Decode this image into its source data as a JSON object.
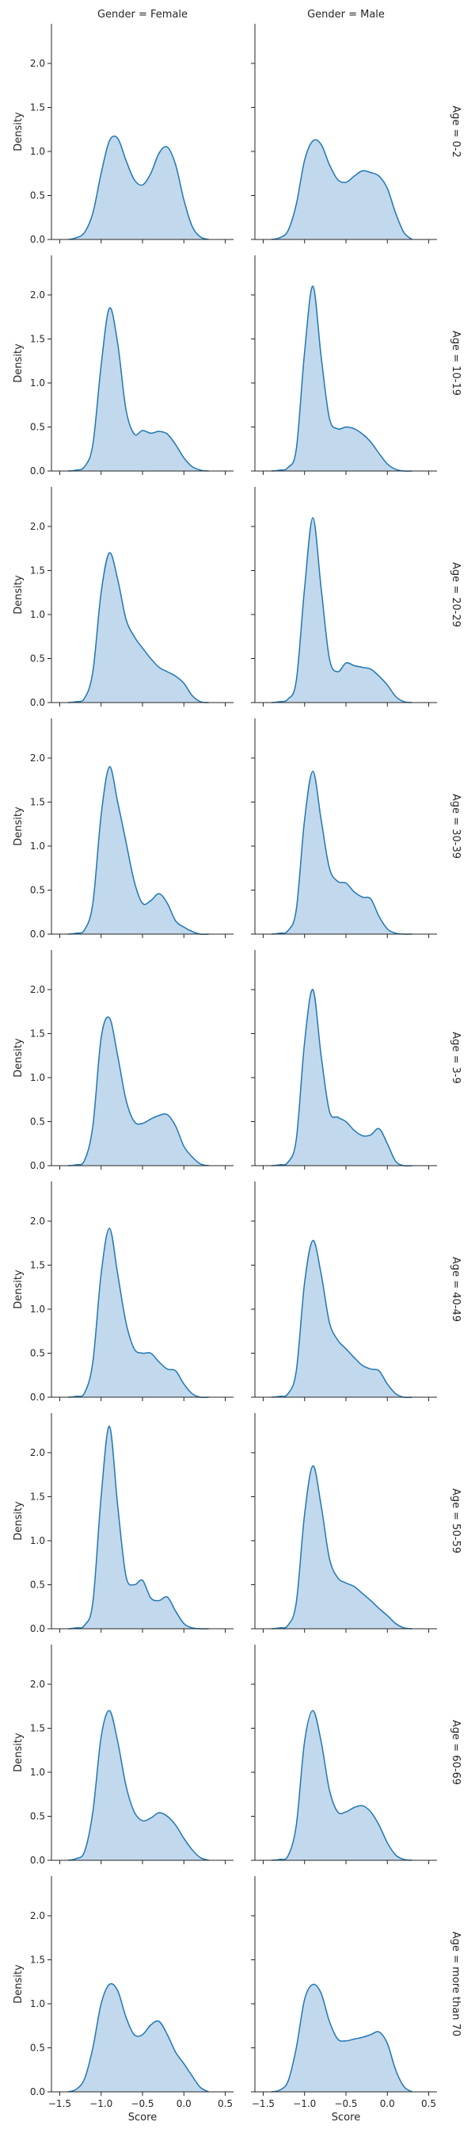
{
  "chart_data": {
    "type": "area",
    "kind": "kde-facet-grid",
    "col_titles": [
      "Gender = Female",
      "Gender = Male"
    ],
    "row_titles": [
      "Age = 0-2",
      "Age = 10-19",
      "Age = 20-29",
      "Age = 30-39",
      "Age = 3-9",
      "Age = 40-49",
      "Age = 50-59",
      "Age = 60-69",
      "Age = more than 70"
    ],
    "xlabel": "Score",
    "ylabel": "Density",
    "xlim": [
      -1.6,
      0.6
    ],
    "ylim": [
      0,
      2.45
    ],
    "x_ticks": [
      -1.5,
      -1.0,
      -0.5,
      0.0,
      0.5
    ],
    "x_tick_labels": [
      "−1.5",
      "−1.0",
      "−0.5",
      "0.0",
      "0.5"
    ],
    "y_ticks": [
      0.0,
      0.5,
      1.0,
      1.5,
      2.0
    ],
    "y_tick_labels": [
      "0.0",
      "0.5",
      "1.0",
      "1.5",
      "2.0"
    ],
    "color": "#1f77b4",
    "fill_color": "#aecbe6",
    "grid": false,
    "x_grid": [
      -1.4,
      -1.3,
      -1.2,
      -1.1,
      -1.0,
      -0.9,
      -0.8,
      -0.7,
      -0.6,
      -0.5,
      -0.4,
      -0.3,
      -0.2,
      -0.1,
      0.0,
      0.1,
      0.2,
      0.3
    ],
    "series": [
      {
        "row": 0,
        "col": 0,
        "x": [
          -1.4,
          -1.3,
          -1.2,
          -1.1,
          -1.0,
          -0.9,
          -0.8,
          -0.7,
          -0.6,
          -0.5,
          -0.4,
          -0.3,
          -0.2,
          -0.1,
          0.0,
          0.1,
          0.2,
          0.3
        ],
        "density": [
          0.0,
          0.02,
          0.08,
          0.3,
          0.75,
          1.12,
          1.15,
          0.9,
          0.68,
          0.62,
          0.75,
          0.98,
          1.05,
          0.85,
          0.45,
          0.15,
          0.03,
          0.0
        ]
      },
      {
        "row": 0,
        "col": 1,
        "x": [
          -1.4,
          -1.3,
          -1.2,
          -1.1,
          -1.0,
          -0.9,
          -0.8,
          -0.7,
          -0.6,
          -0.5,
          -0.4,
          -0.3,
          -0.2,
          -0.1,
          0.0,
          0.1,
          0.2,
          0.3
        ],
        "density": [
          0.0,
          0.02,
          0.1,
          0.4,
          0.9,
          1.12,
          1.08,
          0.85,
          0.68,
          0.65,
          0.72,
          0.78,
          0.76,
          0.72,
          0.58,
          0.3,
          0.08,
          0.0
        ]
      },
      {
        "row": 1,
        "col": 0,
        "x": [
          -1.4,
          -1.3,
          -1.2,
          -1.1,
          -1.0,
          -0.9,
          -0.8,
          -0.7,
          -0.6,
          -0.5,
          -0.4,
          -0.3,
          -0.2,
          -0.1,
          0.0,
          0.1,
          0.2,
          0.3
        ],
        "density": [
          0.0,
          0.01,
          0.05,
          0.3,
          1.2,
          1.85,
          1.45,
          0.7,
          0.42,
          0.46,
          0.43,
          0.45,
          0.42,
          0.3,
          0.15,
          0.05,
          0.01,
          0.0
        ]
      },
      {
        "row": 1,
        "col": 1,
        "x": [
          -1.4,
          -1.3,
          -1.2,
          -1.1,
          -1.0,
          -0.9,
          -0.8,
          -0.7,
          -0.6,
          -0.5,
          -0.4,
          -0.3,
          -0.2,
          -0.1,
          0.0,
          0.1,
          0.2,
          0.3
        ],
        "density": [
          0.0,
          0.01,
          0.04,
          0.25,
          1.35,
          2.1,
          1.3,
          0.6,
          0.48,
          0.5,
          0.48,
          0.42,
          0.33,
          0.2,
          0.08,
          0.02,
          0.0,
          0.0
        ]
      },
      {
        "row": 2,
        "col": 0,
        "x": [
          -1.4,
          -1.3,
          -1.2,
          -1.1,
          -1.0,
          -0.9,
          -0.8,
          -0.7,
          -0.6,
          -0.5,
          -0.4,
          -0.3,
          -0.2,
          -0.1,
          0.0,
          0.1,
          0.2,
          0.3
        ],
        "density": [
          0.0,
          0.01,
          0.05,
          0.35,
          1.25,
          1.7,
          1.4,
          0.95,
          0.75,
          0.62,
          0.5,
          0.4,
          0.35,
          0.3,
          0.22,
          0.08,
          0.01,
          0.0
        ]
      },
      {
        "row": 2,
        "col": 1,
        "x": [
          -1.4,
          -1.3,
          -1.2,
          -1.1,
          -1.0,
          -0.9,
          -0.8,
          -0.7,
          -0.6,
          -0.5,
          -0.4,
          -0.3,
          -0.2,
          -0.1,
          0.0,
          0.1,
          0.2,
          0.3
        ],
        "density": [
          0.0,
          0.01,
          0.04,
          0.25,
          1.3,
          2.1,
          1.3,
          0.5,
          0.35,
          0.45,
          0.42,
          0.4,
          0.38,
          0.3,
          0.2,
          0.07,
          0.01,
          0.0
        ]
      },
      {
        "row": 3,
        "col": 0,
        "x": [
          -1.4,
          -1.3,
          -1.2,
          -1.1,
          -1.0,
          -0.9,
          -0.8,
          -0.7,
          -0.6,
          -0.5,
          -0.4,
          -0.3,
          -0.2,
          -0.1,
          0.0,
          0.1,
          0.2,
          0.3
        ],
        "density": [
          0.0,
          0.01,
          0.05,
          0.35,
          1.35,
          1.9,
          1.5,
          1.05,
          0.6,
          0.35,
          0.38,
          0.46,
          0.35,
          0.15,
          0.08,
          0.03,
          0.0,
          0.0
        ]
      },
      {
        "row": 3,
        "col": 1,
        "x": [
          -1.4,
          -1.3,
          -1.2,
          -1.1,
          -1.0,
          -0.9,
          -0.8,
          -0.7,
          -0.6,
          -0.5,
          -0.4,
          -0.3,
          -0.2,
          -0.1,
          0.0,
          0.1,
          0.2,
          0.3
        ],
        "density": [
          0.0,
          0.01,
          0.04,
          0.28,
          1.3,
          1.85,
          1.3,
          0.75,
          0.6,
          0.58,
          0.48,
          0.42,
          0.4,
          0.2,
          0.06,
          0.01,
          0.0,
          0.0
        ]
      },
      {
        "row": 4,
        "col": 0,
        "x": [
          -1.4,
          -1.3,
          -1.2,
          -1.1,
          -1.0,
          -0.9,
          -0.8,
          -0.7,
          -0.6,
          -0.5,
          -0.4,
          -0.3,
          -0.2,
          -0.1,
          0.0,
          0.1,
          0.2,
          0.3
        ],
        "density": [
          0.0,
          0.01,
          0.06,
          0.45,
          1.45,
          1.68,
          1.25,
          0.75,
          0.5,
          0.48,
          0.53,
          0.57,
          0.58,
          0.45,
          0.22,
          0.1,
          0.02,
          0.0
        ]
      },
      {
        "row": 4,
        "col": 1,
        "x": [
          -1.4,
          -1.3,
          -1.2,
          -1.1,
          -1.0,
          -0.9,
          -0.8,
          -0.7,
          -0.6,
          -0.5,
          -0.4,
          -0.3,
          -0.2,
          -0.1,
          0.0,
          0.1,
          0.2,
          0.3
        ],
        "density": [
          0.0,
          0.01,
          0.04,
          0.3,
          1.4,
          2.0,
          1.25,
          0.62,
          0.55,
          0.5,
          0.4,
          0.34,
          0.35,
          0.42,
          0.25,
          0.05,
          0.0,
          0.0
        ]
      },
      {
        "row": 5,
        "col": 0,
        "x": [
          -1.4,
          -1.3,
          -1.2,
          -1.1,
          -1.0,
          -0.9,
          -0.8,
          -0.7,
          -0.6,
          -0.5,
          -0.4,
          -0.3,
          -0.2,
          -0.1,
          0.0,
          0.1,
          0.2,
          0.3
        ],
        "density": [
          0.0,
          0.01,
          0.05,
          0.4,
          1.4,
          1.92,
          1.4,
          0.85,
          0.55,
          0.5,
          0.5,
          0.4,
          0.32,
          0.3,
          0.15,
          0.04,
          0.0,
          0.0
        ]
      },
      {
        "row": 5,
        "col": 1,
        "x": [
          -1.4,
          -1.3,
          -1.2,
          -1.1,
          -1.0,
          -0.9,
          -0.8,
          -0.7,
          -0.6,
          -0.5,
          -0.4,
          -0.3,
          -0.2,
          -0.1,
          0.0,
          0.1,
          0.2,
          0.3
        ],
        "density": [
          0.0,
          0.01,
          0.04,
          0.3,
          1.3,
          1.78,
          1.4,
          0.85,
          0.65,
          0.55,
          0.45,
          0.36,
          0.32,
          0.3,
          0.15,
          0.04,
          0.0,
          0.0
        ]
      },
      {
        "row": 6,
        "col": 0,
        "x": [
          -1.4,
          -1.3,
          -1.2,
          -1.1,
          -1.0,
          -0.9,
          -0.8,
          -0.7,
          -0.6,
          -0.5,
          -0.4,
          -0.3,
          -0.2,
          -0.1,
          0.0,
          0.1,
          0.2,
          0.3
        ],
        "density": [
          0.0,
          0.01,
          0.04,
          0.3,
          1.5,
          2.3,
          1.4,
          0.6,
          0.5,
          0.55,
          0.35,
          0.32,
          0.36,
          0.2,
          0.06,
          0.01,
          0.0,
          0.0
        ]
      },
      {
        "row": 6,
        "col": 1,
        "x": [
          -1.4,
          -1.3,
          -1.2,
          -1.1,
          -1.0,
          -0.9,
          -0.8,
          -0.7,
          -0.6,
          -0.5,
          -0.4,
          -0.3,
          -0.2,
          -0.1,
          0.0,
          0.1,
          0.2,
          0.3
        ],
        "density": [
          0.0,
          0.01,
          0.04,
          0.3,
          1.3,
          1.85,
          1.4,
          0.8,
          0.58,
          0.52,
          0.48,
          0.4,
          0.32,
          0.23,
          0.15,
          0.06,
          0.01,
          0.0
        ]
      },
      {
        "row": 7,
        "col": 0,
        "x": [
          -1.4,
          -1.3,
          -1.2,
          -1.1,
          -1.0,
          -0.9,
          -0.8,
          -0.7,
          -0.6,
          -0.5,
          -0.4,
          -0.3,
          -0.2,
          -0.1,
          0.0,
          0.1,
          0.2,
          0.3
        ],
        "density": [
          0.0,
          0.02,
          0.1,
          0.55,
          1.4,
          1.7,
          1.35,
          0.85,
          0.55,
          0.45,
          0.48,
          0.54,
          0.5,
          0.4,
          0.25,
          0.12,
          0.03,
          0.0
        ]
      },
      {
        "row": 7,
        "col": 1,
        "x": [
          -1.4,
          -1.3,
          -1.2,
          -1.1,
          -1.0,
          -0.9,
          -0.8,
          -0.7,
          -0.6,
          -0.5,
          -0.4,
          -0.3,
          -0.2,
          -0.1,
          0.0,
          0.1,
          0.2,
          0.3
        ],
        "density": [
          0.0,
          0.01,
          0.05,
          0.4,
          1.35,
          1.7,
          1.35,
          0.8,
          0.55,
          0.55,
          0.6,
          0.62,
          0.55,
          0.4,
          0.2,
          0.06,
          0.01,
          0.0
        ]
      },
      {
        "row": 8,
        "col": 0,
        "x": [
          -1.4,
          -1.3,
          -1.2,
          -1.1,
          -1.0,
          -0.9,
          -0.8,
          -0.7,
          -0.6,
          -0.5,
          -0.4,
          -0.3,
          -0.2,
          -0.1,
          0.0,
          0.1,
          0.2,
          0.3
        ],
        "density": [
          0.0,
          0.03,
          0.15,
          0.5,
          1.0,
          1.22,
          1.15,
          0.85,
          0.65,
          0.65,
          0.76,
          0.8,
          0.65,
          0.45,
          0.32,
          0.18,
          0.05,
          0.0
        ]
      },
      {
        "row": 8,
        "col": 1,
        "x": [
          -1.4,
          -1.3,
          -1.2,
          -1.1,
          -1.0,
          -0.9,
          -0.8,
          -0.7,
          -0.6,
          -0.5,
          -0.4,
          -0.3,
          -0.2,
          -0.1,
          0.0,
          0.1,
          0.2,
          0.3
        ],
        "density": [
          0.0,
          0.02,
          0.12,
          0.5,
          1.05,
          1.22,
          1.12,
          0.8,
          0.6,
          0.58,
          0.6,
          0.62,
          0.65,
          0.68,
          0.55,
          0.25,
          0.06,
          0.0
        ]
      }
    ]
  }
}
